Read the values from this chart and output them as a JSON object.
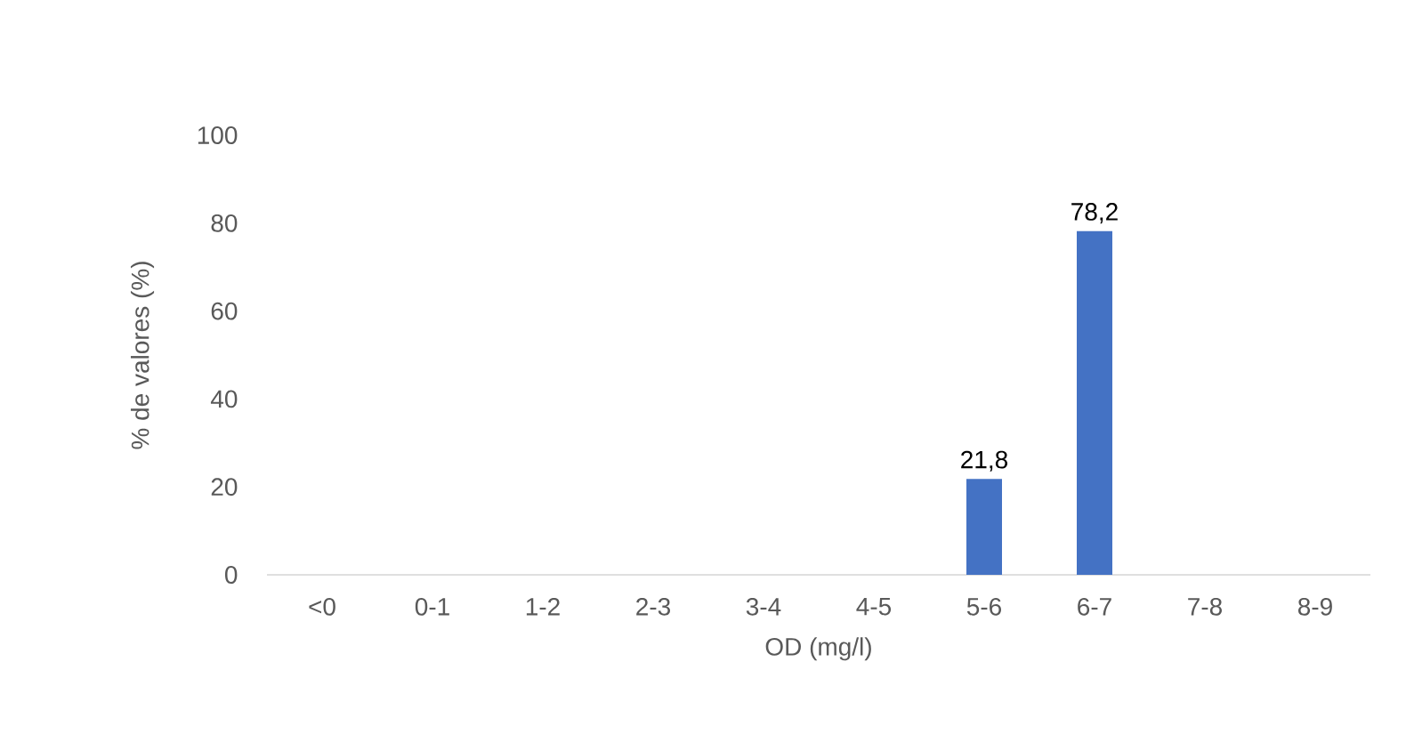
{
  "chart_data": {
    "type": "bar",
    "xlabel": "OD (mg/l)",
    "ylabel": "% de valores (%)",
    "categories": [
      "<0",
      "0-1",
      "1-2",
      "2-3",
      "3-4",
      "4-5",
      "5-6",
      "6-7",
      "7-8",
      "8-9"
    ],
    "values": [
      null,
      null,
      null,
      null,
      null,
      null,
      21.8,
      78.2,
      null,
      null
    ],
    "value_labels": [
      null,
      null,
      null,
      null,
      null,
      null,
      "21,8",
      "78,2",
      null,
      null
    ],
    "color": "#4472c4",
    "ylim": [
      0,
      100
    ],
    "yticks": [
      0,
      20,
      40,
      60,
      80,
      100
    ]
  }
}
